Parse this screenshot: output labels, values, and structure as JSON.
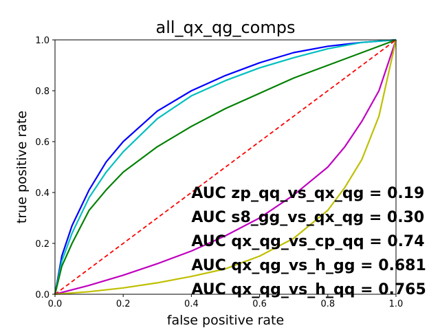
{
  "chart_data": {
    "type": "line",
    "title": "all_qx_qg_comps",
    "xlabel": "false positive rate",
    "ylabel": "true positive rate",
    "xlim": [
      0.0,
      1.0
    ],
    "ylim": [
      0.0,
      1.0
    ],
    "xticks": [
      "0.0",
      "0.2",
      "0.4",
      "0.6",
      "0.8",
      "1.0"
    ],
    "yticks": [
      "0.0",
      "0.2",
      "0.4",
      "0.6",
      "0.8",
      "1.0"
    ],
    "grid": false,
    "legend": "none",
    "series": [
      {
        "color": "#0000ff",
        "x": [
          0,
          0.02,
          0.05,
          0.1,
          0.15,
          0.2,
          0.3,
          0.4,
          0.5,
          0.6,
          0.7,
          0.8,
          0.9,
          1.0
        ],
        "y": [
          0,
          0.15,
          0.27,
          0.41,
          0.52,
          0.6,
          0.72,
          0.8,
          0.86,
          0.91,
          0.95,
          0.975,
          0.99,
          1.0
        ]
      },
      {
        "color": "#00bfbf",
        "x": [
          0,
          0.02,
          0.05,
          0.1,
          0.15,
          0.2,
          0.3,
          0.4,
          0.5,
          0.6,
          0.7,
          0.8,
          0.9,
          1.0
        ],
        "y": [
          0,
          0.13,
          0.24,
          0.38,
          0.48,
          0.56,
          0.69,
          0.78,
          0.84,
          0.89,
          0.93,
          0.965,
          0.99,
          1.0
        ]
      },
      {
        "color": "#008000",
        "x": [
          0,
          0.02,
          0.05,
          0.1,
          0.15,
          0.2,
          0.3,
          0.4,
          0.5,
          0.6,
          0.7,
          0.8,
          0.9,
          1.0
        ],
        "y": [
          0,
          0.11,
          0.2,
          0.33,
          0.41,
          0.48,
          0.58,
          0.66,
          0.73,
          0.79,
          0.85,
          0.9,
          0.95,
          1.0
        ]
      },
      {
        "color": "#ff0000",
        "dashed": true,
        "x": [
          0,
          1.0
        ],
        "y": [
          0,
          1.0
        ]
      },
      {
        "color": "#bf00bf",
        "x": [
          0,
          0.1,
          0.2,
          0.3,
          0.4,
          0.5,
          0.6,
          0.7,
          0.8,
          0.85,
          0.9,
          0.95,
          1.0
        ],
        "y": [
          0,
          0.035,
          0.075,
          0.12,
          0.17,
          0.23,
          0.3,
          0.39,
          0.5,
          0.58,
          0.68,
          0.8,
          1.0
        ]
      },
      {
        "color": "#bfbf00",
        "x": [
          0,
          0.1,
          0.2,
          0.3,
          0.4,
          0.5,
          0.6,
          0.7,
          0.8,
          0.85,
          0.9,
          0.95,
          1.0
        ],
        "y": [
          0,
          0.01,
          0.025,
          0.045,
          0.07,
          0.1,
          0.15,
          0.22,
          0.33,
          0.42,
          0.53,
          0.7,
          1.0
        ]
      }
    ],
    "annotations": [
      "AUC zp_qq_vs_qx_qg = 0.19",
      "AUC s8_gg_vs_qx_qg = 0.30",
      "AUC qx_qg_vs_cp_qq = 0.74",
      "AUC qx_qg_vs_h_gg = 0.681",
      "AUC qx_qg_vs_h_qq = 0.765"
    ]
  }
}
